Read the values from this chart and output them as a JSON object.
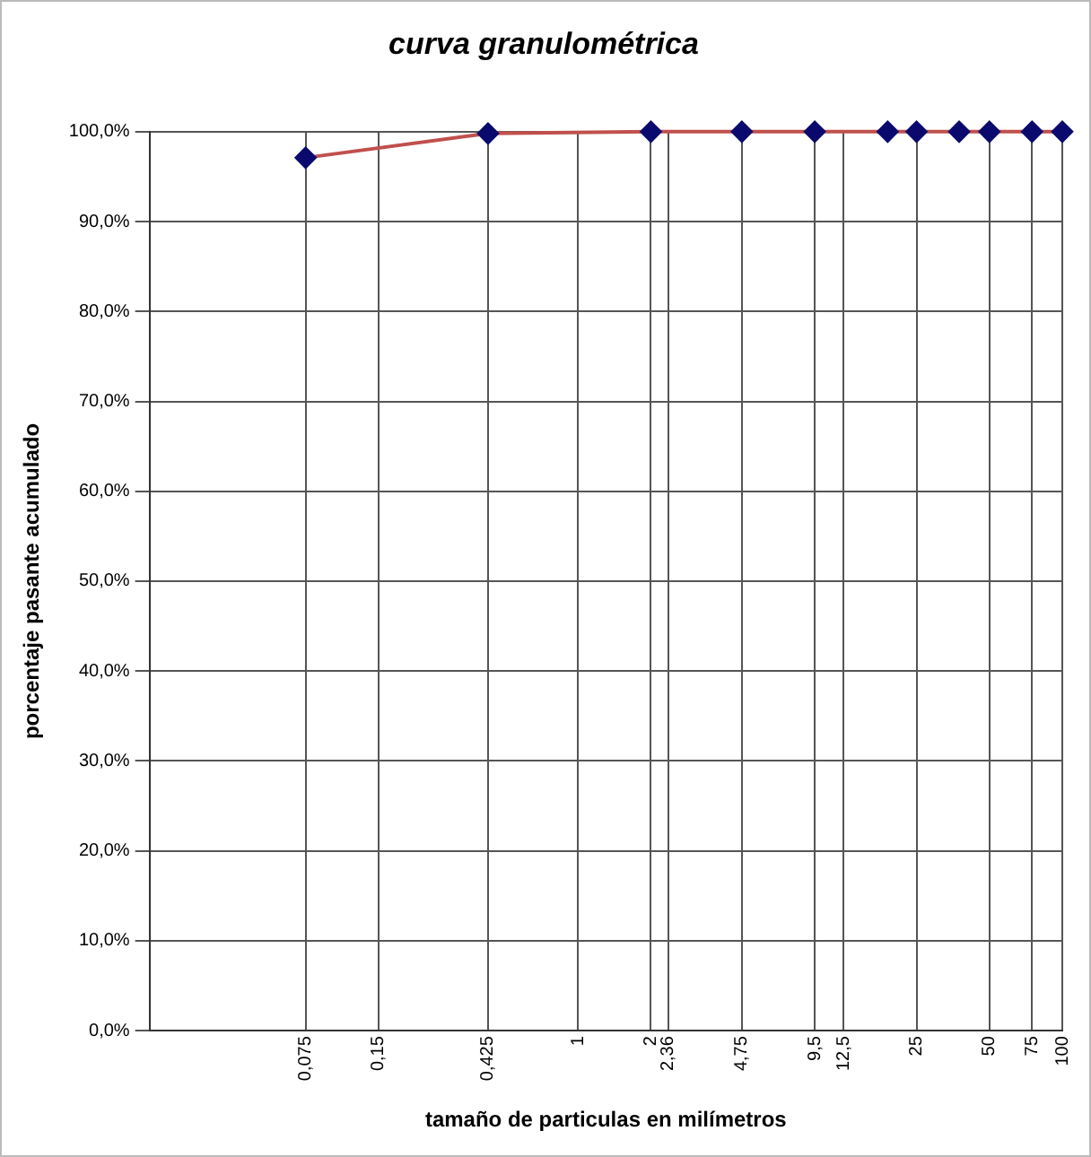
{
  "chart_data": {
    "type": "line",
    "title": "curva granulométrica",
    "xlabel": "tamaño de particulas en milímetros",
    "ylabel": "porcentaje pasante acumulado",
    "x": [
      0.075,
      0.425,
      2,
      4.75,
      9.5,
      19,
      25,
      37.5,
      50,
      75,
      100
    ],
    "series": [
      {
        "color": "#c0504d",
        "values": [
          97.1,
          99.8,
          100,
          100,
          100,
          100,
          100,
          100,
          100,
          100,
          100
        ]
      }
    ],
    "log": "x",
    "xlim": [
      0.017,
      100
    ],
    "xticks": [
      {
        "value": 0.075,
        "label": "0,075"
      },
      {
        "value": 0.15,
        "label": "0,15"
      },
      {
        "value": 0.425,
        "label": "0,425"
      },
      {
        "value": 1,
        "label": "1"
      },
      {
        "value": 2,
        "label": "2"
      },
      {
        "value": 2.36,
        "label": "2,36"
      },
      {
        "value": 4.75,
        "label": "4,75"
      },
      {
        "value": 9.5,
        "label": "9,5"
      },
      {
        "value": 12.5,
        "label": "12,5"
      },
      {
        "value": 25,
        "label": "25"
      },
      {
        "value": 50,
        "label": "50"
      },
      {
        "value": 75,
        "label": "75"
      },
      {
        "value": 100,
        "label": "100"
      }
    ],
    "ylim": [
      0,
      100
    ],
    "yticks": [
      {
        "value": 0,
        "label": "0,0%"
      },
      {
        "value": 10,
        "label": "10,0%"
      },
      {
        "value": 20,
        "label": "20,0%"
      },
      {
        "value": 30,
        "label": "30,0%"
      },
      {
        "value": 40,
        "label": "40,0%"
      },
      {
        "value": 50,
        "label": "50,0%"
      },
      {
        "value": 60,
        "label": "60,0%"
      },
      {
        "value": 70,
        "label": "70,0%"
      },
      {
        "value": 80,
        "label": "80,0%"
      },
      {
        "value": 90,
        "label": "90,0%"
      },
      {
        "value": 100,
        "label": "100,0%"
      }
    ],
    "grid": true,
    "legend": false,
    "marker": "diamond",
    "line_style": "solid"
  }
}
